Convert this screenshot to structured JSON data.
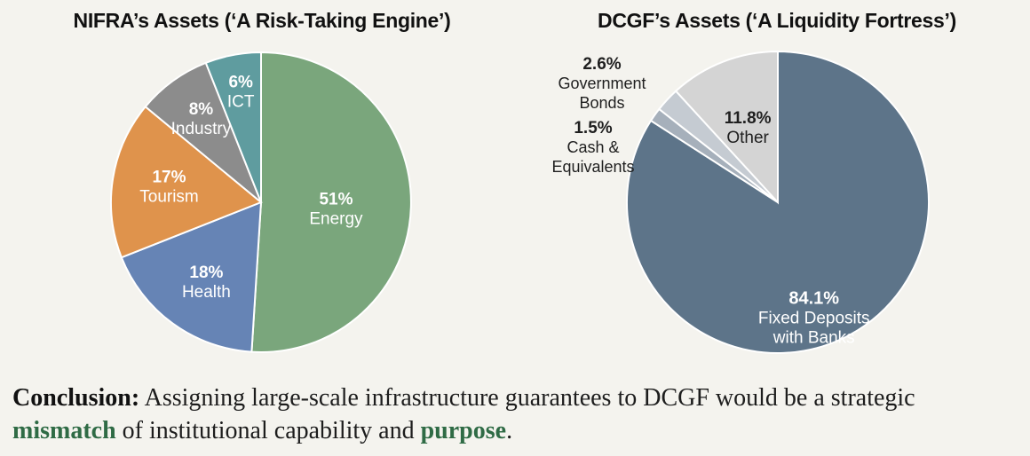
{
  "chart_data": [
    {
      "type": "pie",
      "title": "NIFRA’s Assets (‘A Risk-Taking Engine’)",
      "slices": [
        {
          "label": "Energy",
          "value": 51,
          "value_label": "51%",
          "color": "#7aa67c"
        },
        {
          "label": "Health",
          "value": 18,
          "value_label": "18%",
          "color": "#6684b5"
        },
        {
          "label": "Tourism",
          "value": 17,
          "value_label": "17%",
          "color": "#df934c"
        },
        {
          "label": "Industry",
          "value": 8,
          "value_label": "8%",
          "color": "#8c8c8c"
        },
        {
          "label": "ICT",
          "value": 6,
          "value_label": "6%",
          "color": "#5f9c9f"
        }
      ]
    },
    {
      "type": "pie",
      "title": "DCGF’s Assets (‘A Liquidity Fortress’)",
      "slices": [
        {
          "label": "Fixed Deposits with Banks",
          "value": 84.1,
          "value_label": "84.1%",
          "color": "#5d7489"
        },
        {
          "label": "Cash & Equivalents",
          "value": 1.5,
          "value_label": "1.5%",
          "color": "#a6b0bb"
        },
        {
          "label": "Government Bonds",
          "value": 2.6,
          "value_label": "2.6%",
          "color": "#c5cbd2"
        },
        {
          "label": "Other",
          "value": 11.8,
          "value_label": "11.8%",
          "color": "#d4d4d4"
        }
      ]
    }
  ],
  "conclusion": {
    "lead": "Conclusion:",
    "text_1": " Assigning large-scale infrastructure guarantees to DCGF would be a strategic ",
    "highlight_1": "mismatch",
    "text_2": " of institutional capability and ",
    "highlight_2": "purpose",
    "text_3": "."
  }
}
